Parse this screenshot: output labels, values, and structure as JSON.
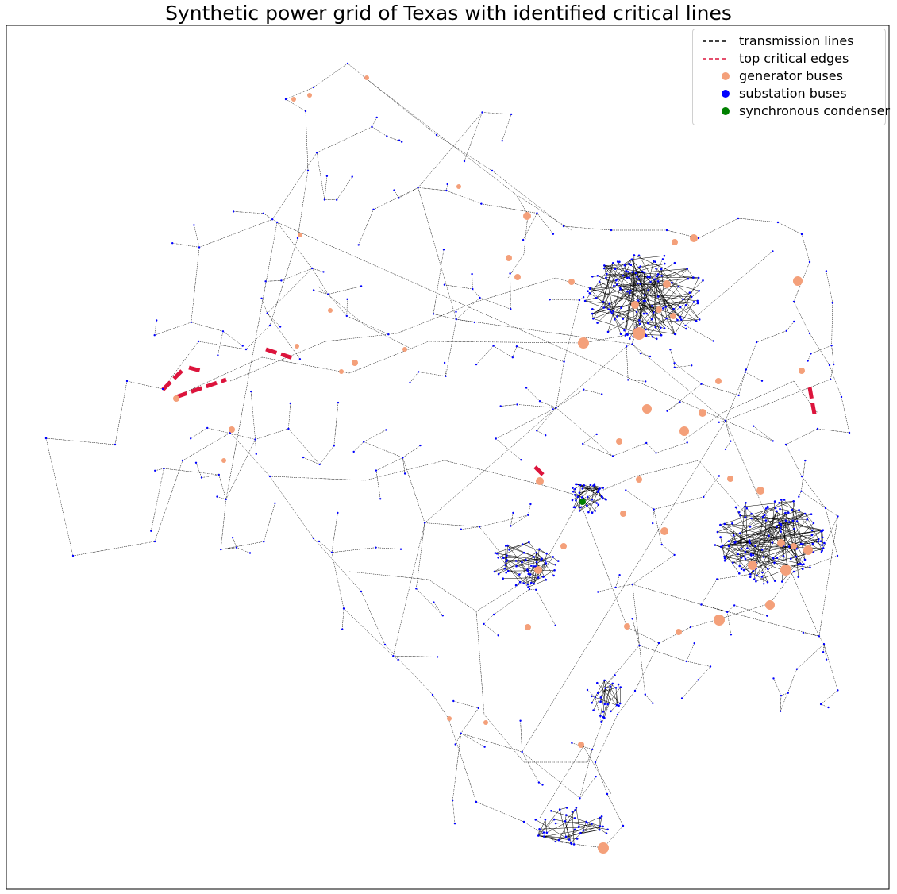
{
  "title": "Synthetic power grid of Texas with identified critical lines",
  "colors": {
    "transmission": "#000000",
    "critical": "#dc143c",
    "generator": "#f4a07a",
    "substation": "#0000ff",
    "condenser": "#008000"
  },
  "legend": [
    {
      "label": "transmission lines",
      "marker": "dashed-line",
      "color": "#000000"
    },
    {
      "label": "top critical edges",
      "marker": "dashed-line",
      "color": "#dc143c"
    },
    {
      "label": "generator buses",
      "marker": "dot",
      "color": "#f4a07a"
    },
    {
      "label": "substation buses",
      "marker": "dot",
      "color": "#0000ff"
    },
    {
      "label": "synchronous condenser",
      "marker": "dot",
      "color": "#008000"
    }
  ],
  "critical_edge_count": 6
}
